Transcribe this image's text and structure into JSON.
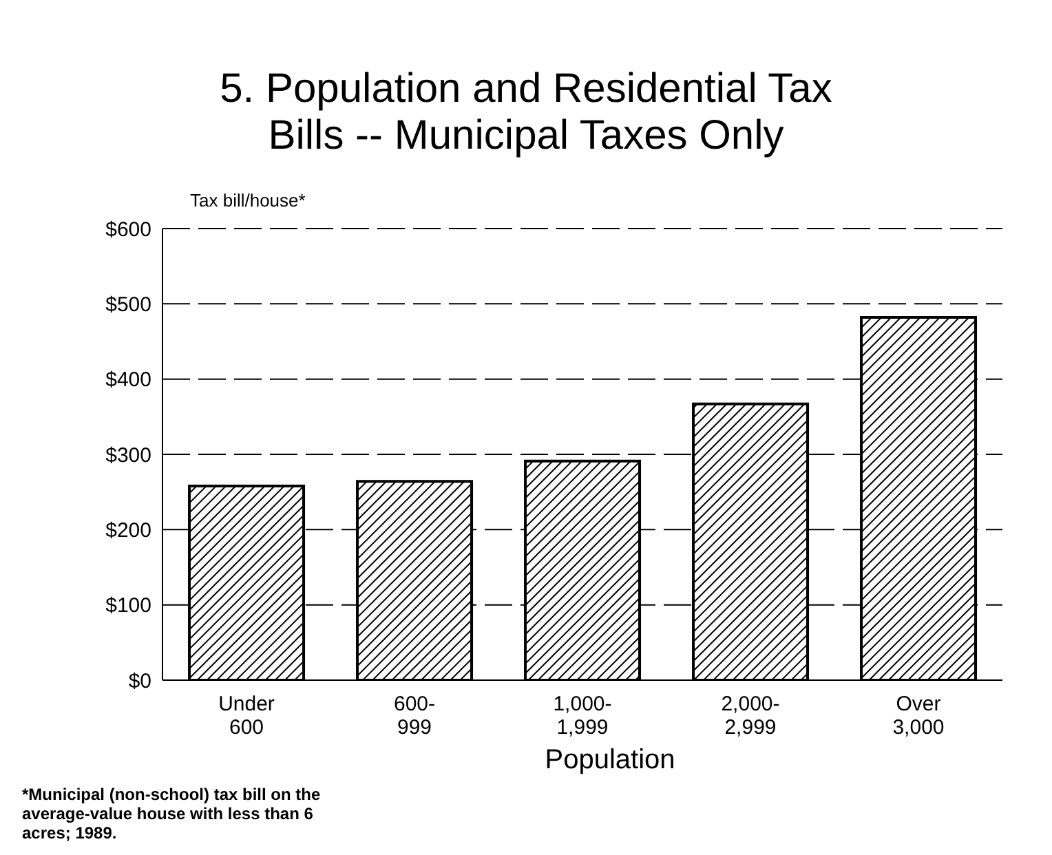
{
  "chart_data": {
    "type": "bar",
    "title": "5. Population and Residential Tax\nBills -- Municipal Taxes Only",
    "ylabel": "Tax bill/house*",
    "xlabel": "Population",
    "categories": [
      "Under\n600",
      "600-\n999",
      "1,000-\n1,999",
      "2,000-\n2,999",
      "Over\n3,000"
    ],
    "values": [
      258,
      264,
      291,
      367,
      482
    ],
    "color": "#000000",
    "ylim": [
      0,
      600
    ],
    "yticks": [
      {
        "value": 0,
        "label": "$0"
      },
      {
        "value": 100,
        "label": "$100"
      },
      {
        "value": 200,
        "label": "$200"
      },
      {
        "value": 300,
        "label": "$300"
      },
      {
        "value": 400,
        "label": "$400"
      },
      {
        "value": 500,
        "label": "$500"
      },
      {
        "value": 600,
        "label": "$600"
      }
    ],
    "grid": "y",
    "legend": false,
    "annotations": [
      "*Municipal (non-school) tax bill on the\naverage-value house with less than 6\nacres; 1989."
    ]
  }
}
